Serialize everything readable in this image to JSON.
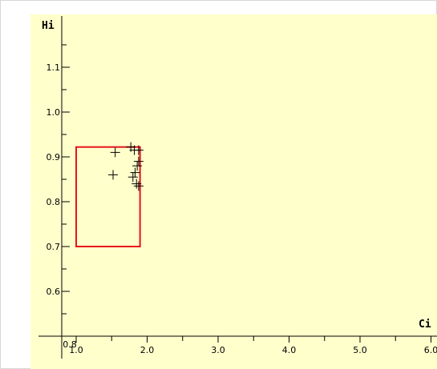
{
  "chart_data": {
    "type": "scatter",
    "xlabel": "Ci",
    "ylabel": "Hi",
    "xlim": [
      0.8,
      6.0
    ],
    "ylim": [
      0.5,
      1.2
    ],
    "x_ticks": [
      "0.8",
      "1.0",
      "2.0",
      "3.0",
      "4.0",
      "5.0",
      "6.0"
    ],
    "y_ticks": [
      "0.6",
      "0.7",
      "0.8",
      "0.9",
      "1.0",
      "1.1"
    ],
    "points": [
      {
        "x": 1.55,
        "y": 0.91
      },
      {
        "x": 1.77,
        "y": 0.922
      },
      {
        "x": 1.82,
        "y": 0.915
      },
      {
        "x": 1.88,
        "y": 0.915
      },
      {
        "x": 1.88,
        "y": 0.89
      },
      {
        "x": 1.86,
        "y": 0.88
      },
      {
        "x": 1.83,
        "y": 0.865
      },
      {
        "x": 1.8,
        "y": 0.855
      },
      {
        "x": 1.85,
        "y": 0.84
      },
      {
        "x": 1.88,
        "y": 0.835
      },
      {
        "x": 1.52,
        "y": 0.86
      }
    ],
    "region": {
      "x_min": 1.0,
      "x_max": 1.9,
      "y_min": 0.7,
      "y_max": 0.922,
      "color": "#e8141c"
    },
    "background_color": "#ffffcc",
    "grid": false,
    "legend": "none"
  }
}
